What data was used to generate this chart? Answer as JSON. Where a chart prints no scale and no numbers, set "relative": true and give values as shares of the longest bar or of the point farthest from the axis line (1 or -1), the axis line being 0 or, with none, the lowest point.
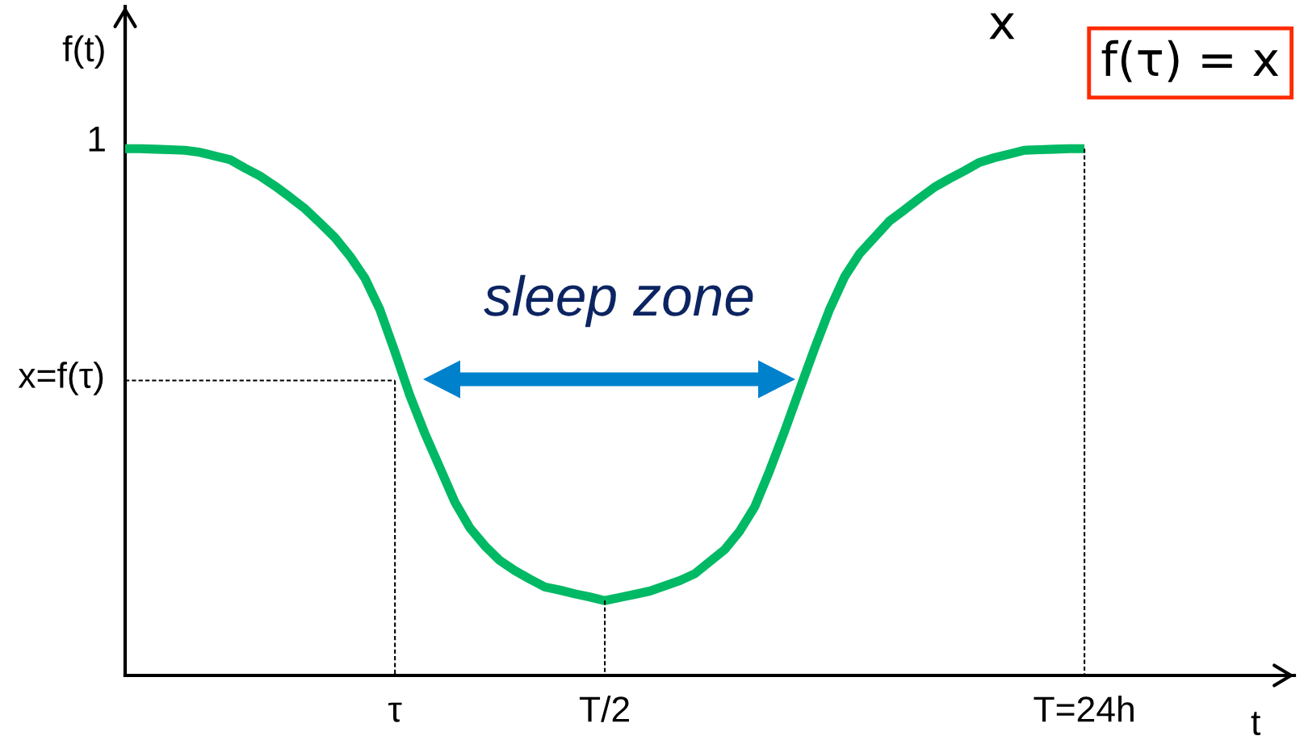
{
  "chart_data": {
    "type": "line",
    "relative": true,
    "xlabel": "t",
    "ylabel": "f(t)",
    "categories": [
      null,
      null,
      null,
      null,
      null,
      null,
      null,
      null,
      null,
      null,
      null,
      null,
      null,
      null,
      null,
      null,
      null,
      null,
      "τ",
      null,
      null,
      null,
      null,
      null,
      null,
      null,
      null,
      null,
      null,
      null,
      null,
      null,
      "T/2",
      null,
      null,
      null,
      null,
      null,
      null,
      null,
      null,
      null,
      null,
      null,
      null,
      null,
      null,
      null,
      null,
      null,
      null,
      null,
      null,
      null,
      null,
      null,
      null,
      null,
      null,
      null,
      null,
      null,
      null,
      null,
      "T=24h",
      null,
      null,
      null,
      null,
      null,
      null,
      null,
      null,
      null,
      null,
      null,
      null,
      null,
      null
    ],
    "series": [
      {
        "color": "#00b964",
        "line_style": "solid",
        "values": [
          1.0,
          1.0,
          0.999,
          0.998,
          0.997,
          0.993,
          0.986,
          0.979,
          0.963,
          0.948,
          0.929,
          0.908,
          0.886,
          0.859,
          0.831,
          0.796,
          0.754,
          0.694,
          0.614,
          0.531,
          0.459,
          0.394,
          0.329,
          0.28,
          0.246,
          0.218,
          0.199,
          0.183,
          0.168,
          0.162,
          0.155,
          0.149,
          0.142,
          0.148,
          0.154,
          0.16,
          0.17,
          0.18,
          0.193,
          0.216,
          0.239,
          0.274,
          0.32,
          0.389,
          0.464,
          0.543,
          0.621,
          0.695,
          0.757,
          0.801,
          0.832,
          0.863,
          0.884,
          0.906,
          0.927,
          0.943,
          0.958,
          0.974,
          0.983,
          0.99,
          0.997,
          0.998,
          0.999,
          1.0,
          1.0,
          null,
          null,
          null,
          null,
          null,
          null,
          null,
          null,
          null,
          null,
          null,
          null,
          null,
          null
        ]
      },
      {
        "color": "#000000",
        "line_style": "dashed",
        "values": [
          0.56,
          0.56,
          0.56,
          0.56,
          0.56,
          0.56,
          0.56,
          0.56,
          0.56,
          0.56,
          0.56,
          0.56,
          0.56,
          0.56,
          0.56,
          0.56,
          0.56,
          0.56,
          0.56,
          null,
          null,
          null,
          null,
          null,
          null,
          null,
          null,
          null,
          null,
          null,
          null,
          null,
          null,
          null,
          null,
          null,
          null,
          null,
          null,
          null,
          null,
          null,
          null,
          null,
          null,
          null,
          null,
          null,
          null,
          null,
          null,
          null,
          null,
          null,
          null,
          null,
          null,
          null,
          null,
          null,
          null,
          null,
          null,
          null,
          null,
          null,
          null,
          null,
          null,
          null,
          null,
          null,
          null,
          null,
          null,
          null,
          null,
          null,
          null
        ]
      },
      {
        "color": "#000000",
        "line_style": "dashed",
        "x": [
          "τ",
          "τ"
        ],
        "values": [
          0.56,
          0
        ]
      },
      {
        "color": "#000000",
        "line_style": "dashed",
        "x": [
          "T/2",
          "T/2"
        ],
        "values": [
          0.142,
          0
        ]
      },
      {
        "color": "#000000",
        "line_style": "dashed",
        "x": [
          "T=24h",
          "T=24h"
        ],
        "values": [
          1.0,
          0
        ]
      }
    ],
    "annotations": [
      "1",
      "x=f(τ)",
      "sleep zone",
      "f(τ) = x",
      "x"
    ]
  }
}
